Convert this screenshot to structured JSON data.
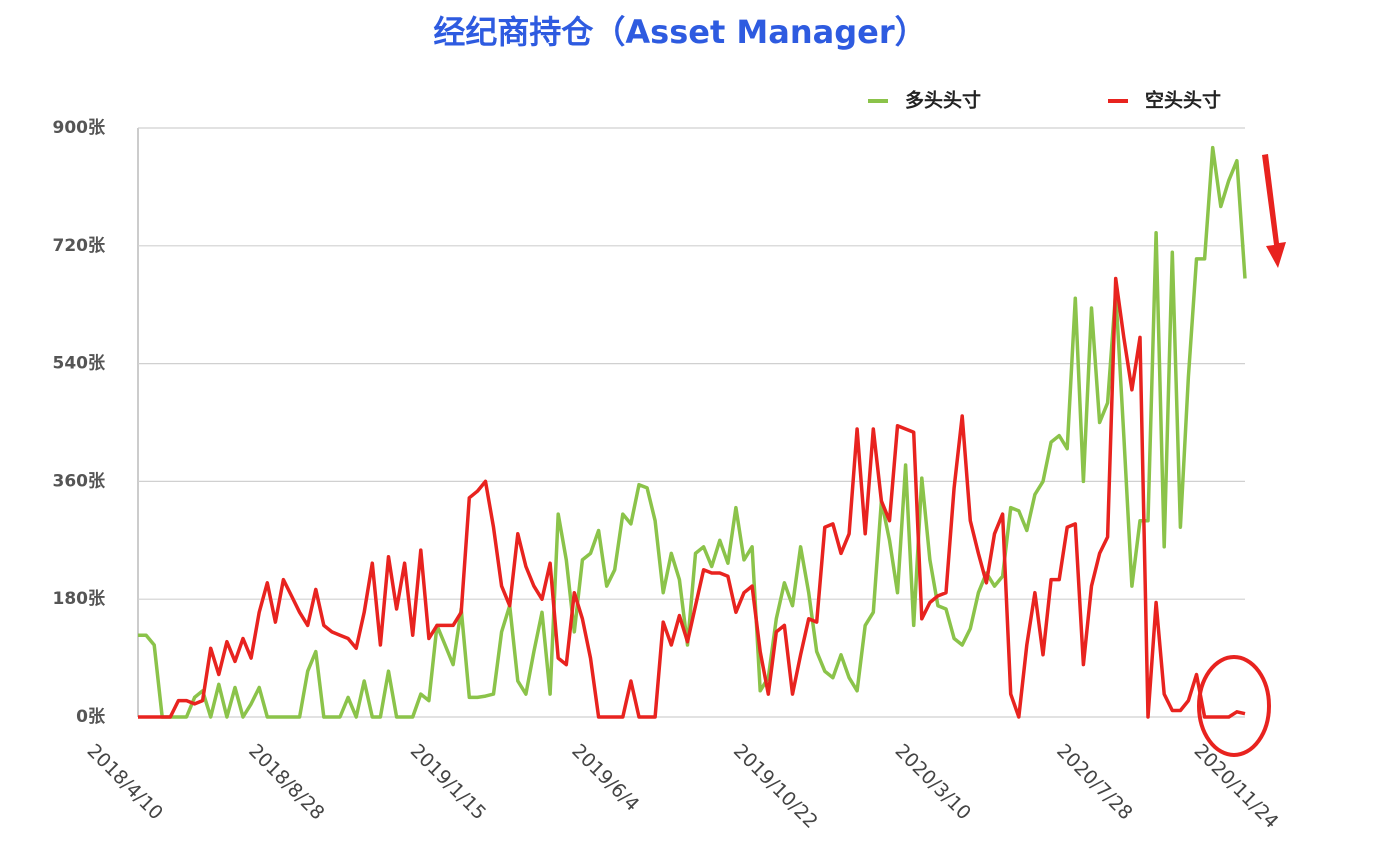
{
  "chart_data": {
    "type": "line",
    "title": "经纪商持仓（Asset Manager）",
    "categories": [
      "2018/4/10",
      null,
      null,
      null,
      null,
      null,
      null,
      null,
      null,
      null,
      null,
      null,
      null,
      null,
      null,
      null,
      null,
      null,
      null,
      null,
      "2018/8/28",
      null,
      null,
      null,
      null,
      null,
      null,
      null,
      null,
      null,
      null,
      null,
      null,
      null,
      null,
      null,
      null,
      null,
      null,
      null,
      "2019/1/15",
      null,
      null,
      null,
      null,
      null,
      null,
      null,
      null,
      null,
      null,
      null,
      null,
      null,
      null,
      null,
      null,
      null,
      null,
      null,
      "2019/6/4",
      null,
      null,
      null,
      null,
      null,
      null,
      null,
      null,
      null,
      null,
      null,
      null,
      null,
      null,
      null,
      null,
      null,
      null,
      null,
      "2019/10/22",
      null,
      null,
      null,
      null,
      null,
      null,
      null,
      null,
      null,
      null,
      null,
      null,
      null,
      null,
      null,
      null,
      null,
      null,
      null,
      "2020/3/10",
      null,
      null,
      null,
      null,
      null,
      null,
      null,
      null,
      null,
      null,
      null,
      null,
      null,
      null,
      null,
      null,
      null,
      null,
      null,
      "2020/7/28",
      null,
      null,
      null,
      null,
      null,
      null,
      null,
      null,
      null,
      null,
      null,
      null,
      null,
      null,
      null,
      null,
      "2020/11/24"
    ],
    "series": [
      {
        "name": "多头头寸",
        "color": "#8bc34a",
        "values": [
          125,
          125,
          110,
          0,
          0,
          0,
          0,
          30,
          40,
          0,
          50,
          0,
          45,
          0,
          20,
          45,
          0,
          0,
          0,
          0,
          0,
          70,
          100,
          0,
          0,
          0,
          30,
          0,
          55,
          0,
          0,
          70,
          0,
          0,
          0,
          35,
          25,
          140,
          110,
          80,
          165,
          30,
          30,
          32,
          35,
          130,
          170,
          55,
          35,
          100,
          160,
          35,
          310,
          240,
          130,
          240,
          250,
          285,
          200,
          225,
          310,
          295,
          355,
          350,
          300,
          190,
          250,
          210,
          110,
          250,
          260,
          230,
          270,
          235,
          320,
          240,
          260,
          40,
          60,
          150,
          205,
          170,
          260,
          190,
          100,
          70,
          60,
          95,
          60,
          40,
          140,
          160,
          330,
          270,
          190,
          385,
          140,
          365,
          240,
          170,
          165,
          120,
          110,
          135,
          190,
          220,
          200,
          215,
          320,
          315,
          285,
          340,
          360,
          420,
          430,
          410,
          640,
          360,
          625,
          450,
          480,
          650,
          430,
          200,
          300,
          300,
          740,
          260,
          710,
          290,
          520,
          700,
          700,
          870,
          780,
          820,
          850,
          670
        ]
      },
      {
        "name": "空头头寸",
        "color": "#e8231f",
        "values": [
          0,
          0,
          0,
          0,
          0,
          25,
          25,
          20,
          25,
          105,
          65,
          115,
          85,
          120,
          90,
          160,
          205,
          145,
          210,
          185,
          160,
          140,
          195,
          140,
          130,
          125,
          120,
          105,
          160,
          235,
          110,
          245,
          165,
          235,
          125,
          255,
          120,
          140,
          140,
          140,
          160,
          335,
          345,
          360,
          290,
          200,
          170,
          280,
          230,
          200,
          180,
          235,
          90,
          80,
          190,
          150,
          90,
          0,
          0,
          0,
          0,
          55,
          0,
          0,
          0,
          145,
          110,
          155,
          115,
          170,
          225,
          220,
          220,
          215,
          160,
          190,
          200,
          100,
          35,
          130,
          140,
          35,
          95,
          150,
          145,
          290,
          295,
          250,
          280,
          440,
          280,
          440,
          330,
          300,
          445,
          440,
          435,
          150,
          175,
          185,
          190,
          350,
          460,
          300,
          250,
          205,
          280,
          310,
          35,
          0,
          110,
          190,
          95,
          210,
          210,
          290,
          295,
          80,
          200,
          250,
          275,
          670,
          580,
          500,
          580,
          0,
          175,
          35,
          10,
          10,
          25,
          65,
          0,
          0,
          0,
          0,
          8,
          5
        ]
      }
    ],
    "ylim": [
      0,
      900
    ],
    "yticks": [
      {
        "value": 0,
        "label": "0张"
      },
      {
        "value": 180,
        "label": "180张"
      },
      {
        "value": 360,
        "label": "360张"
      },
      {
        "value": 540,
        "label": "540张"
      },
      {
        "value": 720,
        "label": "720张"
      },
      {
        "value": 900,
        "label": "900张"
      }
    ],
    "grid": true,
    "legend": "top-right"
  }
}
